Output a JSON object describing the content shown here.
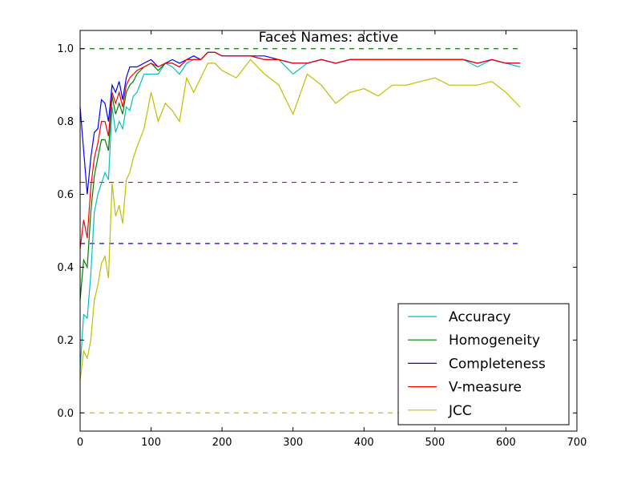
{
  "chart_data": {
    "type": "line",
    "title": "Faces Names: active",
    "xlabel": "",
    "ylabel": "",
    "xlim": [
      0,
      700
    ],
    "ylim": [
      -0.05,
      1.05
    ],
    "x_ticks": [
      "0",
      "100",
      "200",
      "300",
      "400",
      "500",
      "600",
      "700"
    ],
    "y_ticks": [
      "0.0",
      "0.2",
      "0.4",
      "0.6",
      "0.8",
      "1.0"
    ],
    "x_tick_values": [
      0,
      100,
      200,
      300,
      400,
      500,
      600,
      700
    ],
    "y_tick_values": [
      0.0,
      0.2,
      0.4,
      0.6,
      0.8,
      1.0
    ],
    "grid": false,
    "legend_position": "lower-right",
    "series": [
      {
        "name": "Accuracy",
        "color": "#00bfbf",
        "x": [
          0,
          5,
          10,
          15,
          20,
          25,
          30,
          35,
          40,
          45,
          50,
          55,
          60,
          65,
          70,
          75,
          80,
          90,
          100,
          110,
          120,
          130,
          140,
          150,
          160,
          170,
          180,
          190,
          200,
          220,
          240,
          260,
          280,
          300,
          320,
          340,
          360,
          380,
          400,
          420,
          440,
          460,
          480,
          500,
          520,
          540,
          560,
          580,
          600,
          620
        ],
        "y": [
          0.12,
          0.27,
          0.26,
          0.38,
          0.55,
          0.6,
          0.63,
          0.66,
          0.64,
          0.84,
          0.77,
          0.8,
          0.78,
          0.84,
          0.83,
          0.87,
          0.88,
          0.93,
          0.93,
          0.93,
          0.96,
          0.95,
          0.93,
          0.96,
          0.97,
          0.97,
          0.99,
          0.99,
          0.98,
          0.98,
          0.98,
          0.97,
          0.97,
          0.93,
          0.96,
          0.97,
          0.96,
          0.97,
          0.97,
          0.97,
          0.97,
          0.97,
          0.97,
          0.97,
          0.97,
          0.97,
          0.95,
          0.97,
          0.96,
          0.95
        ]
      },
      {
        "name": "Homogeneity",
        "color": "#008000",
        "x": [
          0,
          5,
          10,
          15,
          20,
          25,
          30,
          35,
          40,
          45,
          50,
          55,
          60,
          65,
          70,
          75,
          80,
          90,
          100,
          110,
          120,
          130,
          140,
          150,
          160,
          170,
          180,
          190,
          200,
          220,
          240,
          260,
          280,
          300,
          320,
          340,
          360,
          380,
          400,
          420,
          440,
          460,
          480,
          500,
          520,
          540,
          560,
          580,
          600,
          620
        ],
        "y": [
          0.31,
          0.42,
          0.4,
          0.55,
          0.65,
          0.7,
          0.75,
          0.75,
          0.72,
          0.87,
          0.82,
          0.85,
          0.82,
          0.88,
          0.9,
          0.91,
          0.93,
          0.95,
          0.96,
          0.94,
          0.96,
          0.96,
          0.95,
          0.97,
          0.97,
          0.97,
          0.99,
          0.99,
          0.98,
          0.98,
          0.98,
          0.97,
          0.97,
          0.96,
          0.96,
          0.97,
          0.96,
          0.97,
          0.97,
          0.97,
          0.97,
          0.97,
          0.97,
          0.97,
          0.97,
          0.97,
          0.96,
          0.97,
          0.96,
          0.96
        ]
      },
      {
        "name": "Completeness",
        "color": "#0000ff",
        "x": [
          0,
          5,
          10,
          15,
          20,
          25,
          30,
          35,
          40,
          45,
          50,
          55,
          60,
          65,
          70,
          75,
          80,
          90,
          100,
          110,
          120,
          130,
          140,
          150,
          160,
          170,
          180,
          190,
          200,
          220,
          240,
          260,
          280,
          300,
          320,
          340,
          360,
          380,
          400,
          420,
          440,
          460,
          480,
          500,
          520,
          540,
          560,
          580,
          600,
          620
        ],
        "y": [
          0.84,
          0.72,
          0.6,
          0.7,
          0.77,
          0.78,
          0.86,
          0.85,
          0.8,
          0.9,
          0.88,
          0.91,
          0.86,
          0.92,
          0.95,
          0.95,
          0.95,
          0.96,
          0.97,
          0.95,
          0.96,
          0.97,
          0.96,
          0.97,
          0.98,
          0.97,
          0.99,
          0.99,
          0.98,
          0.98,
          0.98,
          0.98,
          0.97,
          0.96,
          0.96,
          0.97,
          0.96,
          0.97,
          0.97,
          0.97,
          0.97,
          0.97,
          0.97,
          0.97,
          0.97,
          0.97,
          0.96,
          0.97,
          0.96,
          0.96
        ]
      },
      {
        "name": "V-measure",
        "color": "#ff0000",
        "x": [
          0,
          5,
          10,
          15,
          20,
          25,
          30,
          35,
          40,
          45,
          50,
          55,
          60,
          65,
          70,
          75,
          80,
          90,
          100,
          110,
          120,
          130,
          140,
          150,
          160,
          170,
          180,
          190,
          200,
          220,
          240,
          260,
          280,
          300,
          320,
          340,
          360,
          380,
          400,
          420,
          440,
          460,
          480,
          500,
          520,
          540,
          560,
          580,
          600,
          620
        ],
        "y": [
          0.45,
          0.53,
          0.48,
          0.62,
          0.7,
          0.74,
          0.8,
          0.8,
          0.76,
          0.88,
          0.85,
          0.88,
          0.84,
          0.9,
          0.92,
          0.93,
          0.94,
          0.95,
          0.96,
          0.95,
          0.96,
          0.96,
          0.95,
          0.97,
          0.97,
          0.97,
          0.99,
          0.99,
          0.98,
          0.98,
          0.98,
          0.97,
          0.97,
          0.96,
          0.96,
          0.97,
          0.96,
          0.97,
          0.97,
          0.97,
          0.97,
          0.97,
          0.97,
          0.97,
          0.97,
          0.97,
          0.96,
          0.97,
          0.96,
          0.96
        ]
      },
      {
        "name": "JCC",
        "color": "#bfbf00",
        "x": [
          0,
          5,
          10,
          15,
          20,
          25,
          30,
          35,
          40,
          45,
          50,
          55,
          60,
          65,
          70,
          75,
          80,
          90,
          100,
          110,
          120,
          130,
          140,
          150,
          160,
          170,
          180,
          190,
          200,
          220,
          240,
          260,
          280,
          300,
          320,
          340,
          360,
          380,
          400,
          420,
          440,
          460,
          480,
          500,
          520,
          540,
          560,
          580,
          600,
          620
        ],
        "y": [
          0.09,
          0.17,
          0.15,
          0.2,
          0.31,
          0.35,
          0.41,
          0.43,
          0.37,
          0.63,
          0.54,
          0.57,
          0.52,
          0.64,
          0.66,
          0.7,
          0.73,
          0.78,
          0.88,
          0.8,
          0.85,
          0.83,
          0.8,
          0.92,
          0.88,
          0.92,
          0.96,
          0.96,
          0.94,
          0.92,
          0.97,
          0.93,
          0.9,
          0.82,
          0.93,
          0.9,
          0.85,
          0.88,
          0.89,
          0.87,
          0.9,
          0.9,
          0.91,
          0.92,
          0.9,
          0.9,
          0.9,
          0.91,
          0.88,
          0.84
        ]
      }
    ],
    "reference_lines": [
      {
        "y": 1.0,
        "color": "#008000",
        "style": "dashed",
        "x_range": [
          0,
          620
        ]
      },
      {
        "y": 0.633,
        "color": "#ff0000",
        "style": "dashed",
        "x_range": [
          0,
          620
        ]
      },
      {
        "y": 0.465,
        "color": "#0000ff",
        "style": "dashed",
        "x_range": [
          0,
          620
        ]
      },
      {
        "y": 0.0,
        "color": "#bfbf00",
        "style": "dashed",
        "x_range": [
          0,
          620
        ]
      }
    ]
  }
}
